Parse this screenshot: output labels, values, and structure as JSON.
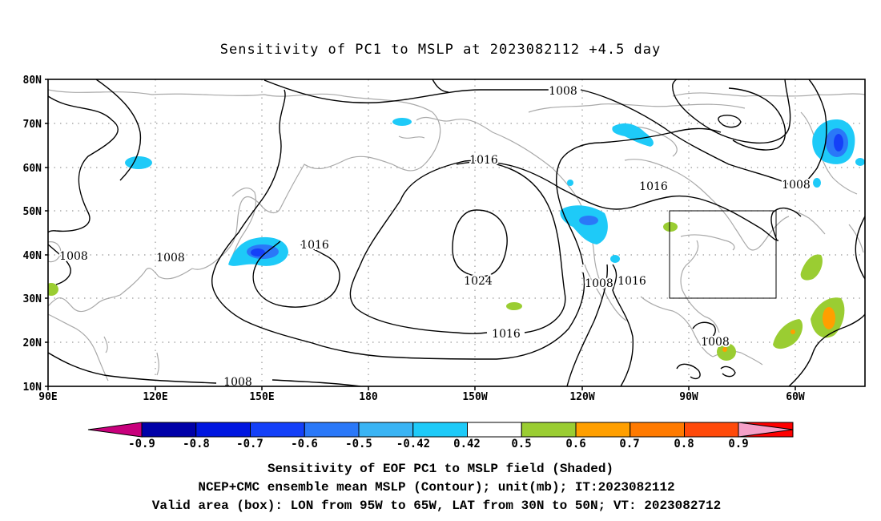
{
  "title": "Sensitivity of PC1 to MSLP at 2023082112 +4.5 day",
  "lat_ticks": [
    "80N",
    "70N",
    "60N",
    "50N",
    "40N",
    "30N",
    "20N",
    "10N"
  ],
  "lon_ticks": [
    "90E",
    "120E",
    "150E",
    "180",
    "150W",
    "120W",
    "90W",
    "60W"
  ],
  "contour_labels": [
    "1008",
    "1016",
    "1016",
    "1008",
    "1008",
    "1016",
    "1024",
    "1016",
    "1008",
    "1016",
    "1008",
    "1008",
    "1008"
  ],
  "colorbar": {
    "colors": [
      "#c8007c",
      "#0000a8",
      "#0016e0",
      "#1440f8",
      "#2a78f8",
      "#3ab4f4",
      "#1ecaf8",
      "#ffffff",
      "#9acd32",
      "#ff9f00",
      "#ff7a00",
      "#ff4a0a",
      "#ff0000",
      "#f5a0c8"
    ],
    "labels": [
      "-0.9",
      "-0.8",
      "-0.7",
      "-0.6",
      "-0.5",
      "-0.42",
      "0.42",
      "0.5",
      "0.6",
      "0.7",
      "0.8",
      "0.9"
    ]
  },
  "caption": {
    "line1": "Sensitivity of EOF PC1 to MSLP field (Shaded)",
    "line2": "NCEP+CMC ensemble mean MSLP (Contour); unit(mb); IT:2023082112",
    "line3": "Valid area (box): LON from 95W to 65W, LAT from 30N to 50N; VT: 2023082712"
  }
}
